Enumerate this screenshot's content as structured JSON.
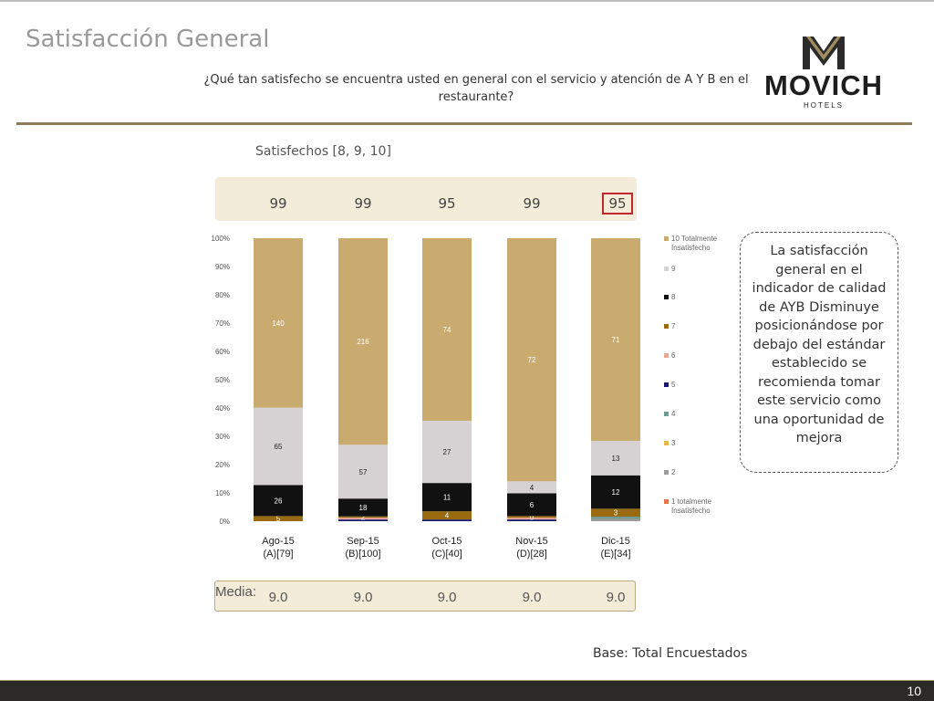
{
  "slide": {
    "title": "Satisfacción General",
    "question": "¿Qué tan satisfecho se encuentra usted en general con el servicio y atención de A Y B en el restaurante?",
    "brand": {
      "name": "MOVICH",
      "sub": "HOTELS",
      "color": "#1e1e1e",
      "accent": "#a08c60"
    },
    "satisfied_label": "Satisfechos [8, 9, 10]",
    "satisfied_values": [
      "99",
      "99",
      "95",
      "99",
      "95"
    ],
    "highlight_index": 4,
    "callout": "La satisfacción general en el indicador de calidad de AYB Disminuye posicionándose por debajo del estándar establecido se recomienda tomar este servicio como una oportunidad de mejora",
    "media_label": "Media:",
    "media_values": [
      "9.0",
      "9.0",
      "9.0",
      "9.0",
      "9.0"
    ],
    "base": "Base: Total Encuestados",
    "page_number": "10"
  },
  "chart_data": {
    "type": "bar",
    "stacked": true,
    "percent": true,
    "categories": [
      {
        "line1": "Ago-15",
        "line2": "(A)[79]"
      },
      {
        "line1": "Sep-15",
        "line2": "(B)[100]"
      },
      {
        "line1": "Oct-15",
        "line2": "(C)[40]"
      },
      {
        "line1": "Nov-15",
        "line2": "(D)[28]"
      },
      {
        "line1": "Dic-15",
        "line2": "(E)[34]"
      }
    ],
    "y_ticks": [
      "0%",
      "10%",
      "20%",
      "30%",
      "40%",
      "50%",
      "60%",
      "70%",
      "80%",
      "90%",
      "100%"
    ],
    "ylim": [
      0,
      100
    ],
    "series": [
      {
        "name": "1 totalmente Insatisfecho",
        "color": "#e8744a",
        "values": [
          0,
          0,
          0,
          0,
          0
        ],
        "labels": [
          "",
          "",
          "",
          "",
          ""
        ]
      },
      {
        "name": "2",
        "color": "#9a9a9a",
        "values": [
          0,
          0,
          0,
          0,
          0.8
        ],
        "labels": [
          "",
          "",
          "",
          "",
          ""
        ]
      },
      {
        "name": "3",
        "color": "#e8b84a",
        "values": [
          0,
          0,
          0,
          0,
          0
        ],
        "labels": [
          "",
          "",
          "",
          "",
          ""
        ]
      },
      {
        "name": "4",
        "color": "#6f9a95",
        "values": [
          0,
          0,
          0,
          0,
          0.8
        ],
        "labels": [
          "",
          "",
          "",
          "",
          ""
        ]
      },
      {
        "name": "5",
        "color": "#1a1a6e",
        "values": [
          0,
          0.6,
          0.6,
          0.6,
          0
        ],
        "labels": [
          "",
          "",
          "",
          "",
          ""
        ]
      },
      {
        "name": "6",
        "color": "#e8a898",
        "values": [
          0,
          0.6,
          0,
          0.6,
          0
        ],
        "labels": [
          "",
          "",
          "",
          "",
          ""
        ]
      },
      {
        "name": "7",
        "color": "#9a6a10",
        "values": [
          1.8,
          0.5,
          2.9,
          0.6,
          2.8
        ],
        "labels": [
          "5",
          "2",
          "4",
          "0",
          "3"
        ]
      },
      {
        "name": "8",
        "color": "#111111",
        "values": [
          11.0,
          6.3,
          10.0,
          8.0,
          11.8
        ],
        "labels": [
          "26",
          "18",
          "11",
          "6",
          "12"
        ]
      },
      {
        "name": "9",
        "color": "#d6d2d3",
        "values": [
          27.3,
          19.0,
          22.0,
          4.2,
          12.2
        ],
        "labels": [
          "65",
          "57",
          "27",
          "4",
          "13"
        ]
      },
      {
        "name": "10 Totalmente Insatisfecho",
        "color": "#c9ab70",
        "values": [
          59.9,
          73.0,
          64.5,
          85.4,
          71.6
        ],
        "labels": [
          "140",
          "216",
          "74",
          "72",
          "71"
        ]
      }
    ]
  }
}
